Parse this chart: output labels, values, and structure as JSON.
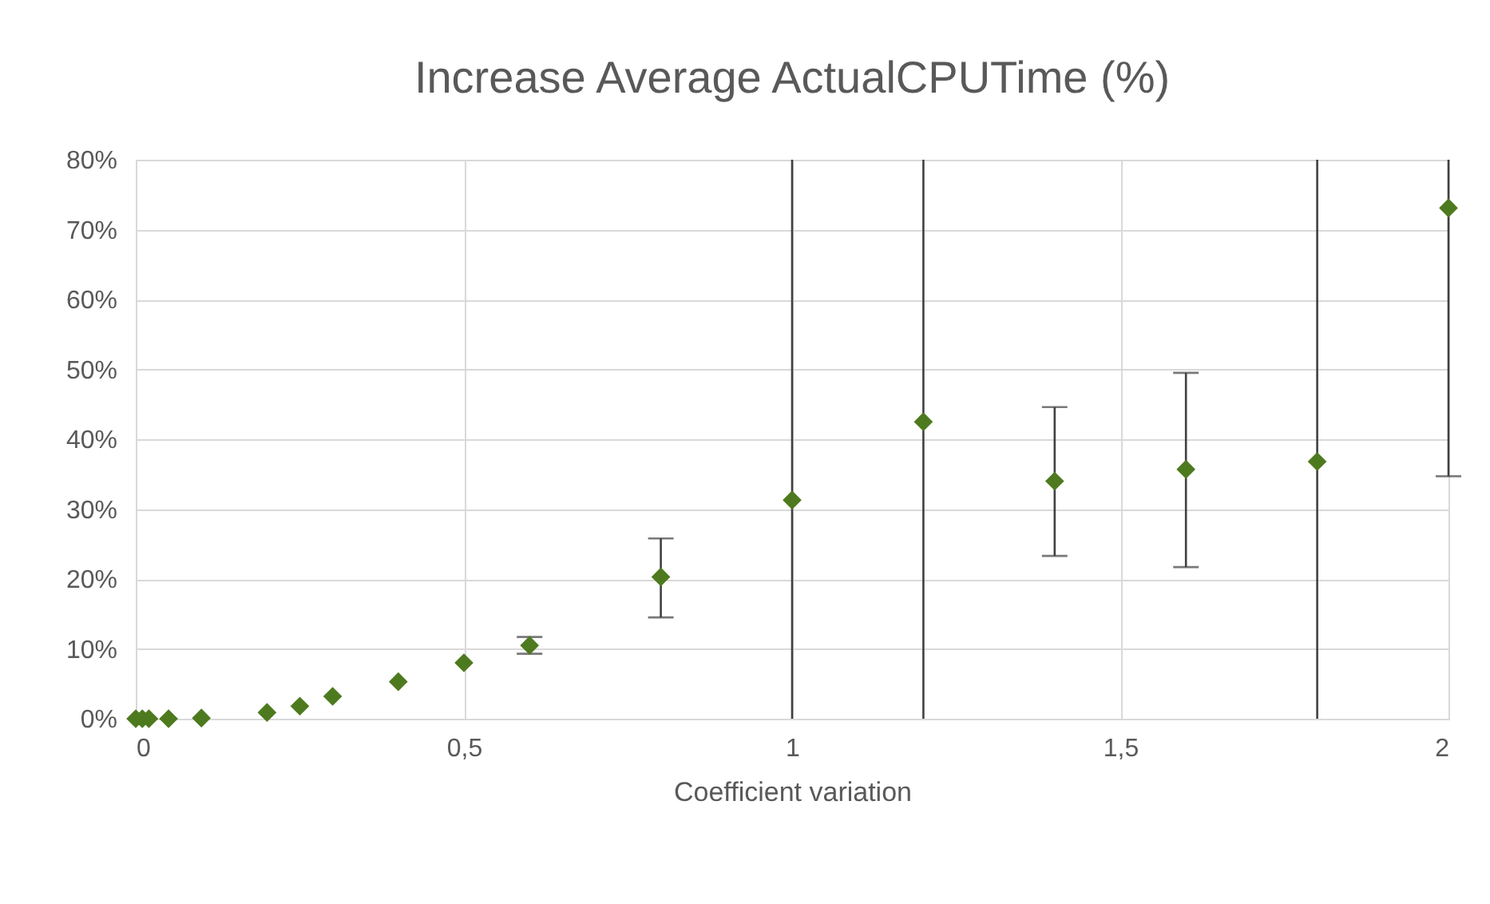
{
  "chart_data": {
    "type": "scatter",
    "title": "Increase Average ActualCPUTime (%)",
    "xlabel": "Coefficient variation",
    "x": [
      0,
      0.01,
      0.02,
      0.05,
      0.1,
      0.2,
      0.25,
      0.3,
      0.4,
      0.5,
      0.6,
      0.8,
      1.0,
      1.2,
      1.4,
      1.6,
      1.8,
      2.0
    ],
    "series": [
      {
        "color": "#4e7a1f",
        "values": [
          0,
          0,
          0,
          0,
          0.1,
          0.9,
          1.8,
          3.2,
          5.3,
          8,
          10.5,
          20.3,
          31.3,
          42.5,
          34,
          35.7,
          36.8,
          73.1
        ],
        "errors": [
          null,
          null,
          null,
          null,
          null,
          null,
          null,
          null,
          null,
          null,
          [
            9.3,
            11.7
          ],
          [
            14.5,
            25.8
          ],
          [
            0,
            80
          ],
          [
            0,
            80
          ],
          [
            23.3,
            44.6
          ],
          [
            21.7,
            49.5
          ],
          [
            0,
            80
          ],
          [
            34.7,
            80
          ]
        ]
      }
    ],
    "xlim": [
      0,
      2
    ],
    "ylim": [
      0,
      80
    ],
    "xticks": [
      0,
      {
        "value": 0.5,
        "label": "0,5"
      },
      1,
      {
        "value": 1.5,
        "label": "1,5"
      },
      2
    ],
    "yticks": [
      {
        "value": 0,
        "label": "0%"
      },
      {
        "value": 10,
        "label": "10%"
      },
      {
        "value": 20,
        "label": "20%"
      },
      {
        "value": 30,
        "label": "30%"
      },
      {
        "value": 40,
        "label": "40%"
      },
      {
        "value": 50,
        "label": "50%"
      },
      {
        "value": 60,
        "label": "60%"
      },
      {
        "value": 70,
        "label": "70%"
      },
      {
        "value": 80,
        "label": "80%"
      }
    ],
    "grid": true,
    "marker": "diamond"
  }
}
